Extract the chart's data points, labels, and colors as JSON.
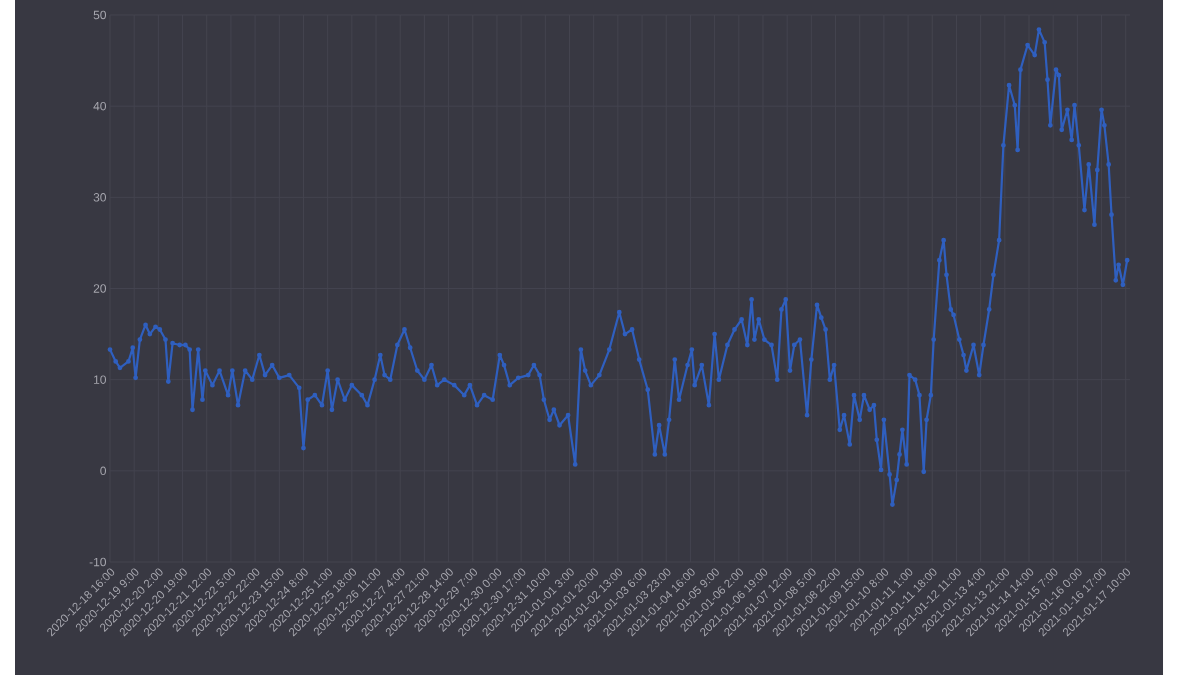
{
  "chart_data": {
    "type": "line",
    "marker": "circle",
    "line_style": "solid",
    "grid": true,
    "xlim": [
      "2020-12-18T16:00",
      "2021-01-17T13:00"
    ],
    "ylim": [
      -10,
      50
    ],
    "yticks": [
      -10,
      0,
      10,
      20,
      30,
      40,
      50
    ],
    "xticks": [
      {
        "value": "2020-12-18T16:00",
        "label": "2020-12-18 16:00"
      },
      {
        "value": "2020-12-19T09:00",
        "label": "2020-12-19 9:00"
      },
      {
        "value": "2020-12-20T02:00",
        "label": "2020-12-20 2:00"
      },
      {
        "value": "2020-12-20T19:00",
        "label": "2020-12-20 19:00"
      },
      {
        "value": "2020-12-21T12:00",
        "label": "2020-12-21 12:00"
      },
      {
        "value": "2020-12-22T05:00",
        "label": "2020-12-22 5:00"
      },
      {
        "value": "2020-12-22T22:00",
        "label": "2020-12-22 22:00"
      },
      {
        "value": "2020-12-23T15:00",
        "label": "2020-12-23 15:00"
      },
      {
        "value": "2020-12-24T08:00",
        "label": "2020-12-24 8:00"
      },
      {
        "value": "2020-12-25T01:00",
        "label": "2020-12-25 1:00"
      },
      {
        "value": "2020-12-25T18:00",
        "label": "2020-12-25 18:00"
      },
      {
        "value": "2020-12-26T11:00",
        "label": "2020-12-26 11:00"
      },
      {
        "value": "2020-12-27T04:00",
        "label": "2020-12-27 4:00"
      },
      {
        "value": "2020-12-27T21:00",
        "label": "2020-12-27 21:00"
      },
      {
        "value": "2020-12-28T14:00",
        "label": "2020-12-28 14:00"
      },
      {
        "value": "2020-12-29T07:00",
        "label": "2020-12-29 7:00"
      },
      {
        "value": "2020-12-30T00:00",
        "label": "2020-12-30 0:00"
      },
      {
        "value": "2020-12-30T17:00",
        "label": "2020-12-30 17:00"
      },
      {
        "value": "2020-12-31T10:00",
        "label": "2020-12-31 10:00"
      },
      {
        "value": "2021-01-01T03:00",
        "label": "2021-01-01 3:00"
      },
      {
        "value": "2021-01-01T20:00",
        "label": "2021-01-01 20:00"
      },
      {
        "value": "2021-01-02T13:00",
        "label": "2021-01-02 13:00"
      },
      {
        "value": "2021-01-03T06:00",
        "label": "2021-01-03 6:00"
      },
      {
        "value": "2021-01-03T23:00",
        "label": "2021-01-03 23:00"
      },
      {
        "value": "2021-01-04T16:00",
        "label": "2021-01-04 16:00"
      },
      {
        "value": "2021-01-05T09:00",
        "label": "2021-01-05 9:00"
      },
      {
        "value": "2021-01-06T02:00",
        "label": "2021-01-06 2:00"
      },
      {
        "value": "2021-01-06T19:00",
        "label": "2021-01-06 19:00"
      },
      {
        "value": "2021-01-07T12:00",
        "label": "2021-01-07 12:00"
      },
      {
        "value": "2021-01-08T05:00",
        "label": "2021-01-08 5:00"
      },
      {
        "value": "2021-01-08T22:00",
        "label": "2021-01-08 22:00"
      },
      {
        "value": "2021-01-09T15:00",
        "label": "2021-01-09 15:00"
      },
      {
        "value": "2021-01-10T08:00",
        "label": "2021-01-10 8:00"
      },
      {
        "value": "2021-01-11T01:00",
        "label": "2021-01-11 1:00"
      },
      {
        "value": "2021-01-11T18:00",
        "label": "2021-01-11 18:00"
      },
      {
        "value": "2021-01-12T11:00",
        "label": "2021-01-12 11:00"
      },
      {
        "value": "2021-01-13T04:00",
        "label": "2021-01-13 4:00"
      },
      {
        "value": "2021-01-13T21:00",
        "label": "2021-01-13 21:00"
      },
      {
        "value": "2021-01-14T14:00",
        "label": "2021-01-14 14:00"
      },
      {
        "value": "2021-01-15T07:00",
        "label": "2021-01-15 7:00"
      },
      {
        "value": "2021-01-16T00:00",
        "label": "2021-01-16 0:00"
      },
      {
        "value": "2021-01-16T17:00",
        "label": "2021-01-16 17:00"
      },
      {
        "value": "2021-01-17T10:00",
        "label": "2021-01-17 10:00"
      }
    ],
    "series": [
      {
        "color": "#2f5fbf",
        "x": [
          "2020-12-18T16:00",
          "2020-12-18T20:00",
          "2020-12-18T23:00",
          "2020-12-19T05:00",
          "2020-12-19T08:00",
          "2020-12-19T10:00",
          "2020-12-19T13:00",
          "2020-12-19T17:00",
          "2020-12-19T20:00",
          "2020-12-20T00:00",
          "2020-12-20T03:00",
          "2020-12-20T07:00",
          "2020-12-20T09:00",
          "2020-12-20T12:00",
          "2020-12-20T17:00",
          "2020-12-20T21:00",
          "2020-12-21T00:00",
          "2020-12-21T02:00",
          "2020-12-21T06:00",
          "2020-12-21T09:00",
          "2020-12-21T11:00",
          "2020-12-21T16:00",
          "2020-12-21T21:00",
          "2020-12-22T03:00",
          "2020-12-22T06:00",
          "2020-12-22T10:00",
          "2020-12-22T15:00",
          "2020-12-22T20:00",
          "2020-12-23T01:00",
          "2020-12-23T05:00",
          "2020-12-23T10:00",
          "2020-12-23T15:00",
          "2020-12-23T22:00",
          "2020-12-24T05:00",
          "2020-12-24T08:00",
          "2020-12-24T11:00",
          "2020-12-24T16:00",
          "2020-12-24T21:00",
          "2020-12-25T01:00",
          "2020-12-25T04:00",
          "2020-12-25T08:00",
          "2020-12-25T13:00",
          "2020-12-25T18:00",
          "2020-12-26T01:00",
          "2020-12-26T05:00",
          "2020-12-26T10:00",
          "2020-12-26T14:00",
          "2020-12-26T17:00",
          "2020-12-26T21:00",
          "2020-12-27T02:00",
          "2020-12-27T07:00",
          "2020-12-27T11:00",
          "2020-12-27T16:00",
          "2020-12-27T21:00",
          "2020-12-28T02:00",
          "2020-12-28T06:00",
          "2020-12-28T11:00",
          "2020-12-28T18:00",
          "2020-12-29T01:00",
          "2020-12-29T05:00",
          "2020-12-29T10:00",
          "2020-12-29T15:00",
          "2020-12-29T21:00",
          "2020-12-30T02:00",
          "2020-12-30T05:00",
          "2020-12-30T09:00",
          "2020-12-30T15:00",
          "2020-12-30T22:00",
          "2020-12-31T02:00",
          "2020-12-31T06:00",
          "2020-12-31T09:00",
          "2020-12-31T13:00",
          "2020-12-31T16:00",
          "2020-12-31T20:00",
          "2021-01-01T02:00",
          "2021-01-01T07:00",
          "2021-01-01T11:00",
          "2021-01-01T14:00",
          "2021-01-01T18:00",
          "2021-01-02T00:00",
          "2021-01-02T07:00",
          "2021-01-02T14:00",
          "2021-01-02T18:00",
          "2021-01-02T23:00",
          "2021-01-03T04:00",
          "2021-01-03T10:00",
          "2021-01-03T15:00",
          "2021-01-03T18:00",
          "2021-01-03T22:00",
          "2021-01-04T01:00",
          "2021-01-04T05:00",
          "2021-01-04T08:00",
          "2021-01-04T14:00",
          "2021-01-04T17:00",
          "2021-01-04T19:00",
          "2021-01-05T00:00",
          "2021-01-05T05:00",
          "2021-01-05T09:00",
          "2021-01-05T12:00",
          "2021-01-05T18:00",
          "2021-01-05T23:00",
          "2021-01-06T04:00",
          "2021-01-06T08:00",
          "2021-01-06T11:00",
          "2021-01-06T13:00",
          "2021-01-06T16:00",
          "2021-01-06T20:00",
          "2021-01-07T01:00",
          "2021-01-07T05:00",
          "2021-01-07T08:00",
          "2021-01-07T11:00",
          "2021-01-07T14:00",
          "2021-01-07T17:00",
          "2021-01-07T21:00",
          "2021-01-08T02:00",
          "2021-01-08T05:00",
          "2021-01-08T09:00",
          "2021-01-08T12:00",
          "2021-01-08T15:00",
          "2021-01-08T18:00",
          "2021-01-08T21:00",
          "2021-01-09T01:00",
          "2021-01-09T04:00",
          "2021-01-09T08:00",
          "2021-01-09T11:00",
          "2021-01-09T15:00",
          "2021-01-09T18:00",
          "2021-01-09T22:00",
          "2021-01-10T01:00",
          "2021-01-10T03:00",
          "2021-01-10T06:00",
          "2021-01-10T08:00",
          "2021-01-10T12:00",
          "2021-01-10T14:00",
          "2021-01-10T17:00",
          "2021-01-10T19:00",
          "2021-01-10T21:00",
          "2021-01-11T00:00",
          "2021-01-11T02:00",
          "2021-01-11T06:00",
          "2021-01-11T09:00",
          "2021-01-11T12:00",
          "2021-01-11T14:00",
          "2021-01-11T17:00",
          "2021-01-11T19:00",
          "2021-01-11T23:00",
          "2021-01-12T02:00",
          "2021-01-12T04:00",
          "2021-01-12T07:00",
          "2021-01-12T09:00",
          "2021-01-12T13:00",
          "2021-01-12T16:00",
          "2021-01-12T18:00",
          "2021-01-12T23:00",
          "2021-01-13T03:00",
          "2021-01-13T06:00",
          "2021-01-13T10:00",
          "2021-01-13T13:00",
          "2021-01-13T17:00",
          "2021-01-13T20:00",
          "2021-01-14T00:00",
          "2021-01-14T04:00",
          "2021-01-14T06:00",
          "2021-01-14T08:00",
          "2021-01-14T13:00",
          "2021-01-14T18:00",
          "2021-01-14T21:00",
          "2021-01-15T01:00",
          "2021-01-15T03:00",
          "2021-01-15T05:00",
          "2021-01-15T09:00",
          "2021-01-15T11:00",
          "2021-01-15T13:00",
          "2021-01-15T17:00",
          "2021-01-15T20:00",
          "2021-01-15T22:00",
          "2021-01-16T01:00",
          "2021-01-16T05:00",
          "2021-01-16T08:00",
          "2021-01-16T12:00",
          "2021-01-16T14:00",
          "2021-01-16T17:00",
          "2021-01-16T19:00",
          "2021-01-16T22:00",
          "2021-01-17T00:00",
          "2021-01-17T03:00",
          "2021-01-17T05:00",
          "2021-01-17T08:00",
          "2021-01-17T11:00"
        ],
        "values": [
          13.3,
          12,
          11.3,
          12,
          13.5,
          10.2,
          14.4,
          16,
          15,
          15.8,
          15.5,
          14.4,
          9.8,
          14,
          13.8,
          13.8,
          13.3,
          6.7,
          13.3,
          7.8,
          11,
          9.4,
          11,
          8.3,
          11,
          7.2,
          11,
          10,
          12.7,
          10.5,
          11.6,
          10.2,
          10.5,
          9.1,
          2.5,
          7.8,
          8.3,
          7.2,
          11,
          6.7,
          10,
          7.8,
          9.4,
          8.3,
          7.2,
          10,
          12.7,
          10.5,
          10,
          13.8,
          15.5,
          13.5,
          11,
          10,
          11.6,
          9.4,
          10,
          9.4,
          8.3,
          9.4,
          7.2,
          8.3,
          7.8,
          12.7,
          11.6,
          9.4,
          10.2,
          10.5,
          11.6,
          10.5,
          7.8,
          5.6,
          6.7,
          5,
          6.1,
          0.7,
          13.3,
          11,
          9.4,
          10.5,
          13.3,
          17.4,
          15,
          15.5,
          12.2,
          8.9,
          1.8,
          5,
          1.8,
          5.6,
          12.2,
          7.8,
          11.6,
          13.3,
          9.4,
          11.6,
          7.2,
          15,
          10,
          13.8,
          15.5,
          16.6,
          13.8,
          18.8,
          14.4,
          16.6,
          14.4,
          13.8,
          10,
          17.7,
          18.8,
          11,
          13.8,
          14.4,
          6.1,
          12.2,
          18.2,
          16.8,
          15.5,
          10,
          11.6,
          4.5,
          6.1,
          2.9,
          8.3,
          5.6,
          8.3,
          6.7,
          7.2,
          3.4,
          0.1,
          5.6,
          -0.4,
          -3.7,
          -1,
          1.8,
          4.5,
          0.7,
          10.5,
          10,
          8.3,
          -0.1,
          5.6,
          8.3,
          14.4,
          23.1,
          25.3,
          21.5,
          17.7,
          17.1,
          14.4,
          12.7,
          11,
          13.8,
          10.5,
          13.8,
          17.7,
          21.5,
          25.3,
          35.7,
          42.3,
          40.1,
          35.2,
          44,
          46.7,
          45.6,
          48.4,
          47,
          42.9,
          37.9,
          44,
          43.4,
          37.4,
          39.6,
          36.3,
          40.1,
          35.7,
          28.6,
          33.6,
          27,
          33,
          39.6,
          37.9,
          33.6,
          28.1,
          20.9,
          22.6,
          20.4,
          23.1
        ]
      }
    ]
  }
}
